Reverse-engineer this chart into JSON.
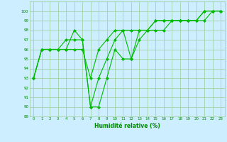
{
  "x": [
    0,
    1,
    2,
    3,
    4,
    5,
    6,
    7,
    8,
    9,
    10,
    11,
    12,
    13,
    14,
    15,
    16,
    17,
    18,
    19,
    20,
    21,
    22,
    23
  ],
  "series": [
    [
      93,
      96,
      96,
      96,
      96,
      98,
      97,
      90,
      90,
      93,
      96,
      95,
      95,
      97,
      98,
      98,
      98,
      99,
      99,
      99,
      99,
      99,
      100,
      100
    ],
    [
      93,
      96,
      96,
      96,
      97,
      97,
      97,
      90,
      93,
      95,
      97,
      98,
      95,
      98,
      98,
      99,
      99,
      99,
      99,
      99,
      99,
      100,
      100,
      100
    ],
    [
      93,
      96,
      96,
      96,
      96,
      96,
      96,
      93,
      96,
      97,
      98,
      98,
      98,
      98,
      98,
      99,
      99,
      99,
      99,
      99,
      99,
      100,
      100,
      100
    ]
  ],
  "line_color": "#00bb00",
  "marker": "D",
  "markersize": 2.0,
  "linewidth": 0.8,
  "bg_color": "#cceeff",
  "grid_color": "#99cc99",
  "xlabel": "Humidité relative (%)",
  "xlabel_color": "#008800",
  "tick_color": "#008800",
  "ylim": [
    89,
    101
  ],
  "xlim": [
    -0.5,
    23.5
  ],
  "yticks": [
    89,
    90,
    91,
    92,
    93,
    94,
    95,
    96,
    97,
    98,
    99,
    100
  ],
  "xticks": [
    0,
    1,
    2,
    3,
    4,
    5,
    6,
    7,
    8,
    9,
    10,
    11,
    12,
    13,
    14,
    15,
    16,
    17,
    18,
    19,
    20,
    21,
    22,
    23
  ]
}
